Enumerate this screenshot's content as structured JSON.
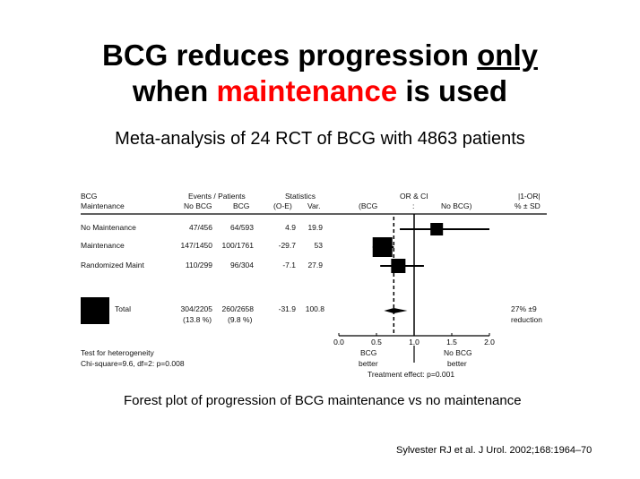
{
  "slide": {
    "title_line1_pre": "BCG reduces progression ",
    "title_line1_u": "only",
    "title_line2_red": "maintenance",
    "title_line2_pre": "when ",
    "title_line2_post": " is used",
    "subtitle": "Meta-analysis of 24 RCT of BCG with 4863 patients",
    "caption": "Forest plot of progression of BCG maintenance vs no maintenance",
    "citation": "Sylvester RJ et al. J Urol. 2002;168:1964–70",
    "accent_color": "#ff0000"
  },
  "table": {
    "head": {
      "c1a": "BCG",
      "c1b": "Maintenance",
      "ep": "Events / Patients",
      "nobcg": "No BCG",
      "bcg": "BCG",
      "stats": "Statistics",
      "oe": "(O-E)",
      "var": "Var.",
      "orci": "OR & CI",
      "bcgl": "(BCG",
      "colon": ":",
      "nobcgr": "No BCG)",
      "or1": "|1-OR|",
      "or2": "% ± SD"
    },
    "rows": [
      {
        "label": "No Maintenance",
        "nobcg": "47/456",
        "bcg": "64/593",
        "oe": "4.9",
        "var": "19.9"
      },
      {
        "label": "Maintenance",
        "nobcg": "147/1450",
        "bcg": "100/1761",
        "oe": "-29.7",
        "var": "53"
      },
      {
        "label": "Randomized Maint",
        "nobcg": "110/299",
        "bcg": "96/304",
        "oe": "-7.1",
        "var": "27.9"
      }
    ],
    "total": {
      "label": "Total",
      "nobcg": "304/2205",
      "bcg": "260/2658",
      "nobcg_pct": "(13.8 %)",
      "bcg_pct": "(9.8 %)",
      "oe": "-31.9",
      "var": "100.8",
      "effect1": "27% ±9",
      "effect2": "reduction"
    },
    "heterogeneity1": "Test for heterogeneity",
    "heterogeneity2": "Chi-square=9.6, df=2: p=0.008"
  },
  "chart_data": {
    "type": "forest",
    "xlim": [
      0,
      2
    ],
    "ticks": [
      "0.0",
      "0.5",
      "1.0",
      "1.5",
      "2.0"
    ],
    "reference_line": 1.0,
    "pooled_line": 0.73,
    "studies": [
      {
        "label": "No Maintenance",
        "or": 1.3,
        "ci": [
          0.81,
          2.0
        ]
      },
      {
        "label": "Maintenance",
        "or": 0.58,
        "ci": [
          0.45,
          0.73
        ]
      },
      {
        "label": "Randomized Maint",
        "or": 0.79,
        "ci": [
          0.55,
          1.13
        ]
      }
    ],
    "total": {
      "label": "Total",
      "or": 0.73,
      "ci": [
        0.6,
        0.91
      ]
    },
    "left_label1": "BCG",
    "left_label2": "better",
    "right_label1": "No BCG",
    "right_label2": "better",
    "treatment_effect": "Treatment effect: p=0.001"
  }
}
